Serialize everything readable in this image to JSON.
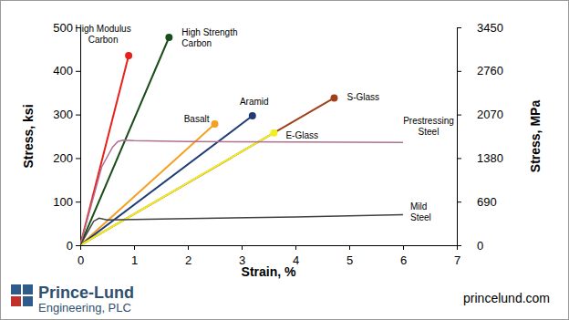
{
  "chart_data": {
    "type": "line",
    "x_label": "Strain, %",
    "y_label": "Stress, ksi",
    "y2_label": "Stress, MPa",
    "xlim": [
      0,
      7
    ],
    "xticks": [
      0,
      1,
      2,
      3,
      4,
      5,
      6,
      7
    ],
    "ylim": [
      0,
      500
    ],
    "yticks": [
      0,
      100,
      200,
      300,
      400,
      500
    ],
    "y2lim": [
      0,
      3450
    ],
    "y2ticks": [
      0,
      690,
      1380,
      2070,
      2760,
      3450
    ],
    "grid": false,
    "series": [
      {
        "name": "High Modulus Carbon",
        "color": "#e8201c",
        "marker": "end",
        "x": [
          0,
          0.9
        ],
        "values": [
          0,
          435
        ]
      },
      {
        "name": "High Strength Carbon",
        "color": "#1a4d1a",
        "marker": "end",
        "x": [
          0,
          1.65
        ],
        "values": [
          0,
          477
        ]
      },
      {
        "name": "Basalt",
        "color": "#f5a020",
        "marker": "end",
        "x": [
          0,
          2.5
        ],
        "values": [
          0,
          278
        ]
      },
      {
        "name": "Aramid",
        "color": "#1f3c78",
        "marker": "end",
        "x": [
          0,
          3.2
        ],
        "values": [
          0,
          297
        ]
      },
      {
        "name": "S-Glass",
        "color": "#a0401a",
        "marker": "end",
        "x": [
          0,
          4.72
        ],
        "values": [
          0,
          338
        ]
      },
      {
        "name": "E-Glass",
        "color": "#f0f020",
        "marker": "end",
        "x": [
          0,
          3.6
        ],
        "values": [
          0,
          258
        ]
      },
      {
        "name": "Prestressing Steel",
        "color": "#b07090",
        "marker": "none",
        "x": [
          0,
          0.4,
          0.6,
          0.7,
          0.8,
          1,
          2,
          4,
          6
        ],
        "values": [
          0,
          180,
          225,
          238,
          241,
          240,
          238,
          237,
          236
        ]
      },
      {
        "name": "Mild Steel",
        "color": "#404040",
        "marker": "none",
        "x": [
          0,
          0.25,
          0.35,
          0.5,
          1,
          2,
          4,
          6
        ],
        "values": [
          0,
          55,
          62,
          58,
          59,
          61,
          65,
          70
        ]
      }
    ],
    "annotations": [
      {
        "text": "Prince-Lund"
      },
      {
        "text": "Engineering, PLC"
      },
      {
        "text": "princelund.com"
      }
    ]
  }
}
